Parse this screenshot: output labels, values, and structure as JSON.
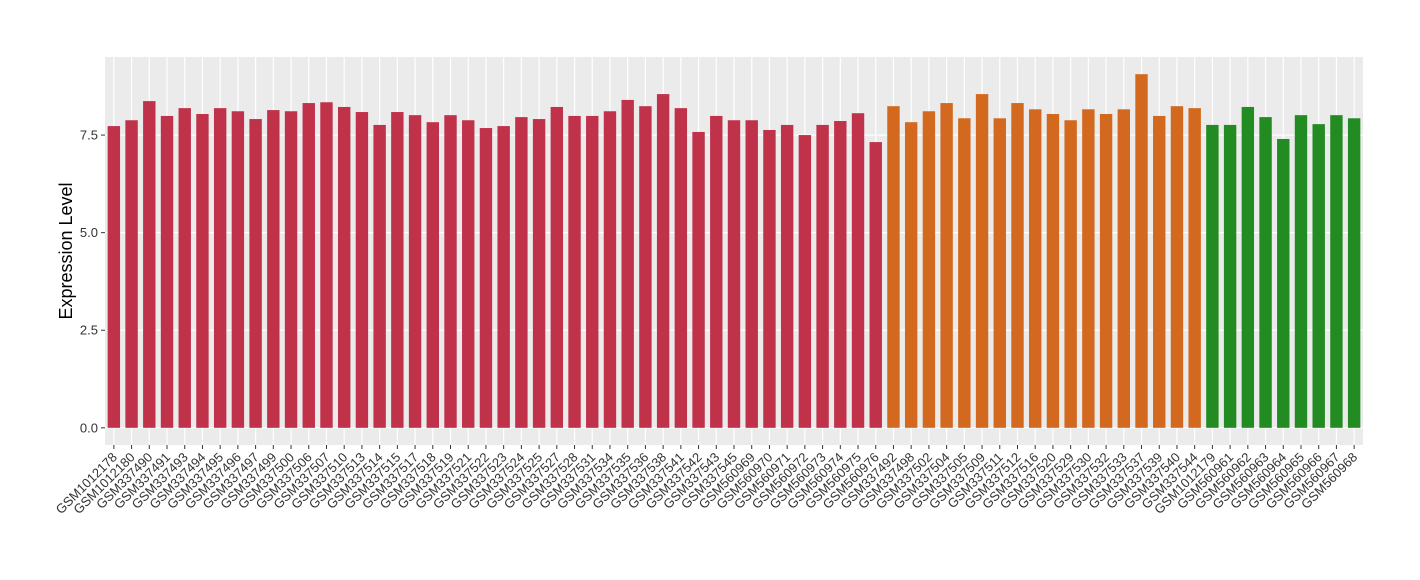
{
  "chart_data": {
    "type": "bar",
    "y_label": "Expression Level",
    "categories": [
      "GSM1012178",
      "GSM1012180",
      "GSM337490",
      "GSM337491",
      "GSM337493",
      "GSM337494",
      "GSM337495",
      "GSM337496",
      "GSM337497",
      "GSM337499",
      "GSM337500",
      "GSM337506",
      "GSM337507",
      "GSM337510",
      "GSM337513",
      "GSM337514",
      "GSM337515",
      "GSM337517",
      "GSM337518",
      "GSM337519",
      "GSM337521",
      "GSM337522",
      "GSM337523",
      "GSM337524",
      "GSM337525",
      "GSM337527",
      "GSM337528",
      "GSM337531",
      "GSM337534",
      "GSM337535",
      "GSM337536",
      "GSM337538",
      "GSM337541",
      "GSM337542",
      "GSM337543",
      "GSM337545",
      "GSM560969",
      "GSM560970",
      "GSM560971",
      "GSM560972",
      "GSM560973",
      "GSM560974",
      "GSM560975",
      "GSM560976",
      "GSM337492",
      "GSM337498",
      "GSM337502",
      "GSM337504",
      "GSM337505",
      "GSM337509",
      "GSM337511",
      "GSM337512",
      "GSM337516",
      "GSM337520",
      "GSM337529",
      "GSM337530",
      "GSM337532",
      "GSM337533",
      "GSM337537",
      "GSM337539",
      "GSM337540",
      "GSM337544",
      "GSM1012179",
      "GSM560961",
      "GSM560962",
      "GSM560963",
      "GSM560964",
      "GSM560965",
      "GSM560966",
      "GSM560967",
      "GSM560968"
    ],
    "series": [
      {
        "color": "#c0314a",
        "values": [
          7.73,
          7.88,
          8.37,
          7.99,
          8.19,
          8.04,
          8.19,
          8.11,
          7.91,
          8.14,
          8.11,
          8.32,
          8.34,
          8.22,
          8.09,
          7.76,
          8.09,
          8.01,
          7.83,
          8.01,
          7.88,
          7.68,
          7.73,
          7.96,
          7.91,
          8.22,
          7.99,
          7.99,
          8.11,
          8.4,
          8.24,
          8.55,
          8.19,
          7.58,
          7.99,
          7.88,
          7.88,
          7.63,
          7.76,
          7.5,
          7.76,
          7.86,
          8.06,
          7.32,
          null,
          null,
          null,
          null,
          null,
          null,
          null,
          null,
          null,
          null,
          null,
          null,
          null,
          null,
          null,
          null,
          null,
          null,
          null,
          null,
          null,
          null,
          null,
          null,
          null,
          null,
          null
        ]
      },
      {
        "color": "#d2691e",
        "values": [
          null,
          null,
          null,
          null,
          null,
          null,
          null,
          null,
          null,
          null,
          null,
          null,
          null,
          null,
          null,
          null,
          null,
          null,
          null,
          null,
          null,
          null,
          null,
          null,
          null,
          null,
          null,
          null,
          null,
          null,
          null,
          null,
          null,
          null,
          null,
          null,
          null,
          null,
          null,
          null,
          null,
          null,
          null,
          null,
          8.24,
          7.83,
          8.11,
          8.32,
          7.93,
          8.55,
          7.93,
          8.32,
          8.16,
          8.04,
          7.88,
          8.16,
          8.04,
          8.16,
          9.06,
          7.99,
          8.24,
          8.19,
          null,
          null,
          null,
          null,
          null,
          null,
          null,
          null,
          null
        ]
      },
      {
        "color": "#228b22",
        "values": [
          null,
          null,
          null,
          null,
          null,
          null,
          null,
          null,
          null,
          null,
          null,
          null,
          null,
          null,
          null,
          null,
          null,
          null,
          null,
          null,
          null,
          null,
          null,
          null,
          null,
          null,
          null,
          null,
          null,
          null,
          null,
          null,
          null,
          null,
          null,
          null,
          null,
          null,
          null,
          null,
          null,
          null,
          null,
          null,
          null,
          null,
          null,
          null,
          null,
          null,
          null,
          null,
          null,
          null,
          null,
          null,
          null,
          null,
          null,
          null,
          null,
          null,
          7.76,
          7.76,
          8.22,
          7.96,
          7.4,
          8.01,
          7.78,
          8.01,
          7.93
        ]
      }
    ],
    "ylim": [
      -0.44,
      9.5
    ],
    "yticks": [
      {
        "value": 0,
        "label": "0.0"
      },
      2.5,
      {
        "value": 5,
        "label": "5.0"
      },
      7.5
    ],
    "grid": true
  }
}
